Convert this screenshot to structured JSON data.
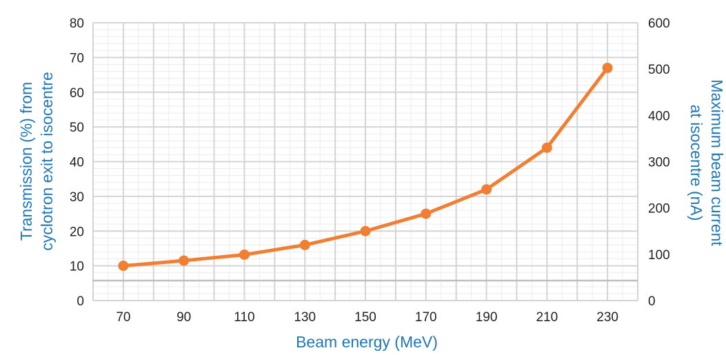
{
  "chart_data": {
    "type": "line",
    "x": [
      70,
      90,
      110,
      130,
      150,
      170,
      190,
      210,
      230
    ],
    "series": [
      {
        "values": [
          10,
          11.5,
          13.2,
          16,
          20,
          25,
          32,
          44,
          67
        ]
      }
    ],
    "xlabel": "Beam energy (MeV)",
    "ylabel": "Transmission (%) from cyclotron exit to isocentre",
    "ylabel_lines": [
      "Transmission (%) from",
      "cyclotron exit to isocentre"
    ],
    "y2label": "Maximum beam current at isocentre (nA)",
    "y2label_lines": [
      "Maximum beam current",
      "at isocentre (nA)"
    ],
    "x_ticks": [
      70,
      90,
      110,
      130,
      150,
      170,
      190,
      210,
      230
    ],
    "y_ticks": [
      0,
      10,
      20,
      30,
      40,
      50,
      60,
      70,
      80
    ],
    "y2_ticks": [
      0,
      100,
      200,
      300,
      400,
      500,
      600
    ],
    "ylim": [
      0,
      80
    ],
    "y2lim": [
      0,
      600
    ],
    "grid": true,
    "colors": {
      "series": "#f07f33",
      "axis_title": "#1f77b4",
      "grid": "#d4d4d4",
      "reference_line": "#b8b8b8"
    }
  }
}
